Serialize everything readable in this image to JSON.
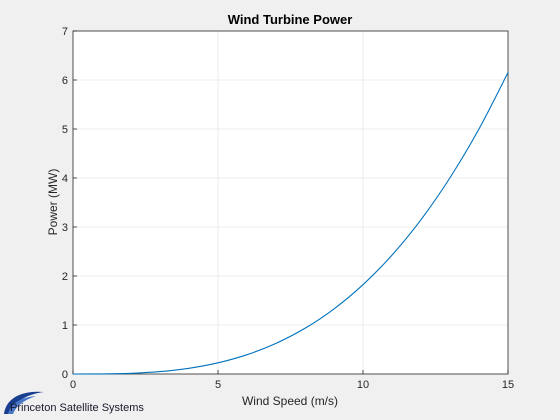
{
  "chart_data": {
    "type": "line",
    "title": "Wind Turbine Power",
    "xlabel": "Wind Speed (m/s)",
    "ylabel": "Power (MW)",
    "xlim": [
      0,
      15
    ],
    "ylim": [
      0,
      7
    ],
    "xticks": [
      0,
      5,
      10,
      15
    ],
    "yticks": [
      0,
      1,
      2,
      3,
      4,
      5,
      6,
      7
    ],
    "grid": true,
    "legend": "none",
    "series": [
      {
        "color": "#0072bd",
        "x": [
          0,
          1,
          2,
          3,
          4,
          5,
          6,
          7,
          8,
          9,
          10,
          11,
          12,
          13,
          14,
          15
        ],
        "y": [
          0,
          0.0018,
          0.0146,
          0.049,
          0.117,
          0.228,
          0.394,
          0.625,
          0.933,
          1.329,
          1.823,
          2.426,
          3.15,
          4.005,
          5.002,
          6.152
        ]
      }
    ]
  },
  "footer": {
    "company": "Princeton Satellite Systems"
  },
  "colors": {
    "background": "#f0f0f0",
    "plot_area": "#ffffff",
    "grid": "#e6e6e6",
    "axis": "#262626",
    "logo_swoosh": "#1b3f8f"
  }
}
